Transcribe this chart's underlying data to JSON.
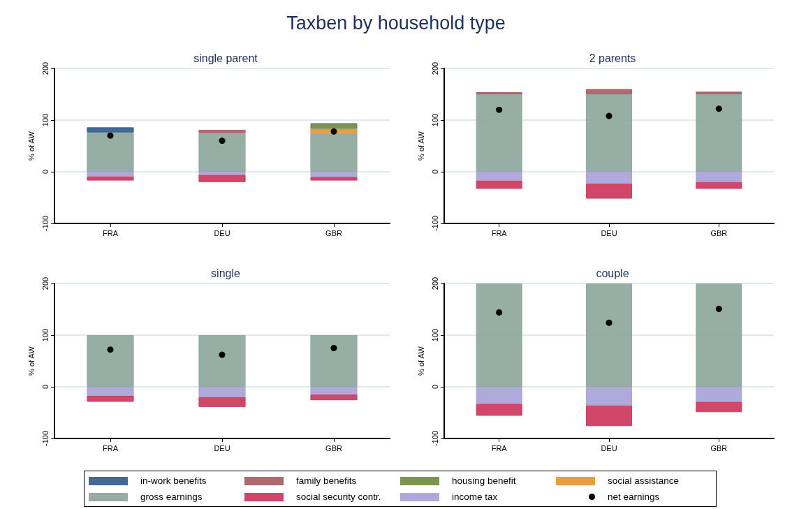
{
  "chart_data": [
    {
      "type": "bar",
      "title": "single parent",
      "ylabel": "% of AW",
      "annotations": [
        "Taxben by household type"
      ],
      "categories": [
        "FRA",
        "DEU",
        "GBR"
      ],
      "stacked": true,
      "ylim": [
        -100,
        200
      ],
      "yticks": [
        -100,
        0,
        100,
        200
      ],
      "grid": "y",
      "legend": "bottom",
      "series": [
        {
          "name": "income tax",
          "color": "#a7a0d8",
          "values": [
            -9,
            -6,
            -10
          ]
        },
        {
          "name": "social security contr.",
          "color": "#cc3359",
          "values": [
            -8,
            -14,
            -7
          ]
        },
        {
          "name": "gross earnings",
          "color": "#8ca59a",
          "values": [
            76,
            75,
            75
          ]
        },
        {
          "name": "social assistance",
          "color": "#e8922e",
          "values": [
            null,
            null,
            8
          ]
        },
        {
          "name": "housing benefit",
          "color": "#6b8a3e",
          "values": [
            null,
            null,
            9
          ]
        },
        {
          "name": "family benefits",
          "color": "#a45a5f",
          "values": [
            null,
            6,
            2
          ]
        },
        {
          "name": "in-work benefits",
          "color": "#2e5b87",
          "values": [
            10,
            null,
            null
          ]
        },
        {
          "name": "net earnings",
          "type": "scatter",
          "marker": "circle",
          "color": "#000000",
          "x": [
            "FRA",
            "DEU",
            "GBR"
          ],
          "values": [
            70,
            60,
            78
          ]
        }
      ]
    },
    {
      "type": "bar",
      "title": "2 parents",
      "ylabel": "% of AW",
      "categories": [
        "FRA",
        "DEU",
        "GBR"
      ],
      "stacked": true,
      "ylim": [
        -100,
        200
      ],
      "yticks": [
        -100,
        0,
        100,
        200
      ],
      "grid": "y",
      "legend": "bottom",
      "series": [
        {
          "name": "income tax",
          "color": "#a7a0d8",
          "values": [
            -17,
            -23,
            -20
          ]
        },
        {
          "name": "social security contr.",
          "color": "#cc3359",
          "values": [
            -16,
            -29,
            -13
          ]
        },
        {
          "name": "gross earnings",
          "color": "#8ca59a",
          "values": [
            150,
            150,
            150
          ]
        },
        {
          "name": "family benefits",
          "color": "#a45a5f",
          "values": [
            4,
            10,
            5
          ]
        },
        {
          "name": "net earnings",
          "type": "scatter",
          "marker": "circle",
          "color": "#000000",
          "x": [
            "FRA",
            "DEU",
            "GBR"
          ],
          "values": [
            120,
            108,
            122
          ]
        }
      ]
    },
    {
      "type": "bar",
      "title": "single",
      "ylabel": "% of AW",
      "categories": [
        "FRA",
        "DEU",
        "GBR"
      ],
      "stacked": true,
      "ylim": [
        -100,
        200
      ],
      "yticks": [
        -100,
        0,
        100,
        200
      ],
      "grid": "y",
      "legend": "bottom",
      "series": [
        {
          "name": "income tax",
          "color": "#a7a0d8",
          "values": [
            -17,
            -20,
            -15
          ]
        },
        {
          "name": "social security contr.",
          "color": "#cc3359",
          "values": [
            -12,
            -19,
            -11
          ]
        },
        {
          "name": "gross earnings",
          "color": "#8ca59a",
          "values": [
            100,
            100,
            100
          ]
        },
        {
          "name": "net earnings",
          "type": "scatter",
          "marker": "circle",
          "color": "#000000",
          "x": [
            "FRA",
            "DEU",
            "GBR"
          ],
          "values": [
            72,
            62,
            75
          ]
        }
      ]
    },
    {
      "type": "bar",
      "title": "couple",
      "ylabel": "% of AW",
      "categories": [
        "FRA",
        "DEU",
        "GBR"
      ],
      "stacked": true,
      "ylim": [
        -100,
        200
      ],
      "yticks": [
        -100,
        0,
        100,
        200
      ],
      "grid": "y",
      "legend": "bottom",
      "series": [
        {
          "name": "income tax",
          "color": "#a7a0d8",
          "values": [
            -33,
            -36,
            -29
          ]
        },
        {
          "name": "social security contr.",
          "color": "#cc3359",
          "values": [
            -23,
            -40,
            -20
          ]
        },
        {
          "name": "gross earnings",
          "color": "#8ca59a",
          "values": [
            200,
            200,
            200
          ]
        },
        {
          "name": "net earnings",
          "type": "scatter",
          "marker": "circle",
          "color": "#000000",
          "x": [
            "FRA",
            "DEU",
            "GBR"
          ],
          "values": [
            144,
            124,
            151
          ]
        }
      ]
    }
  ]
}
